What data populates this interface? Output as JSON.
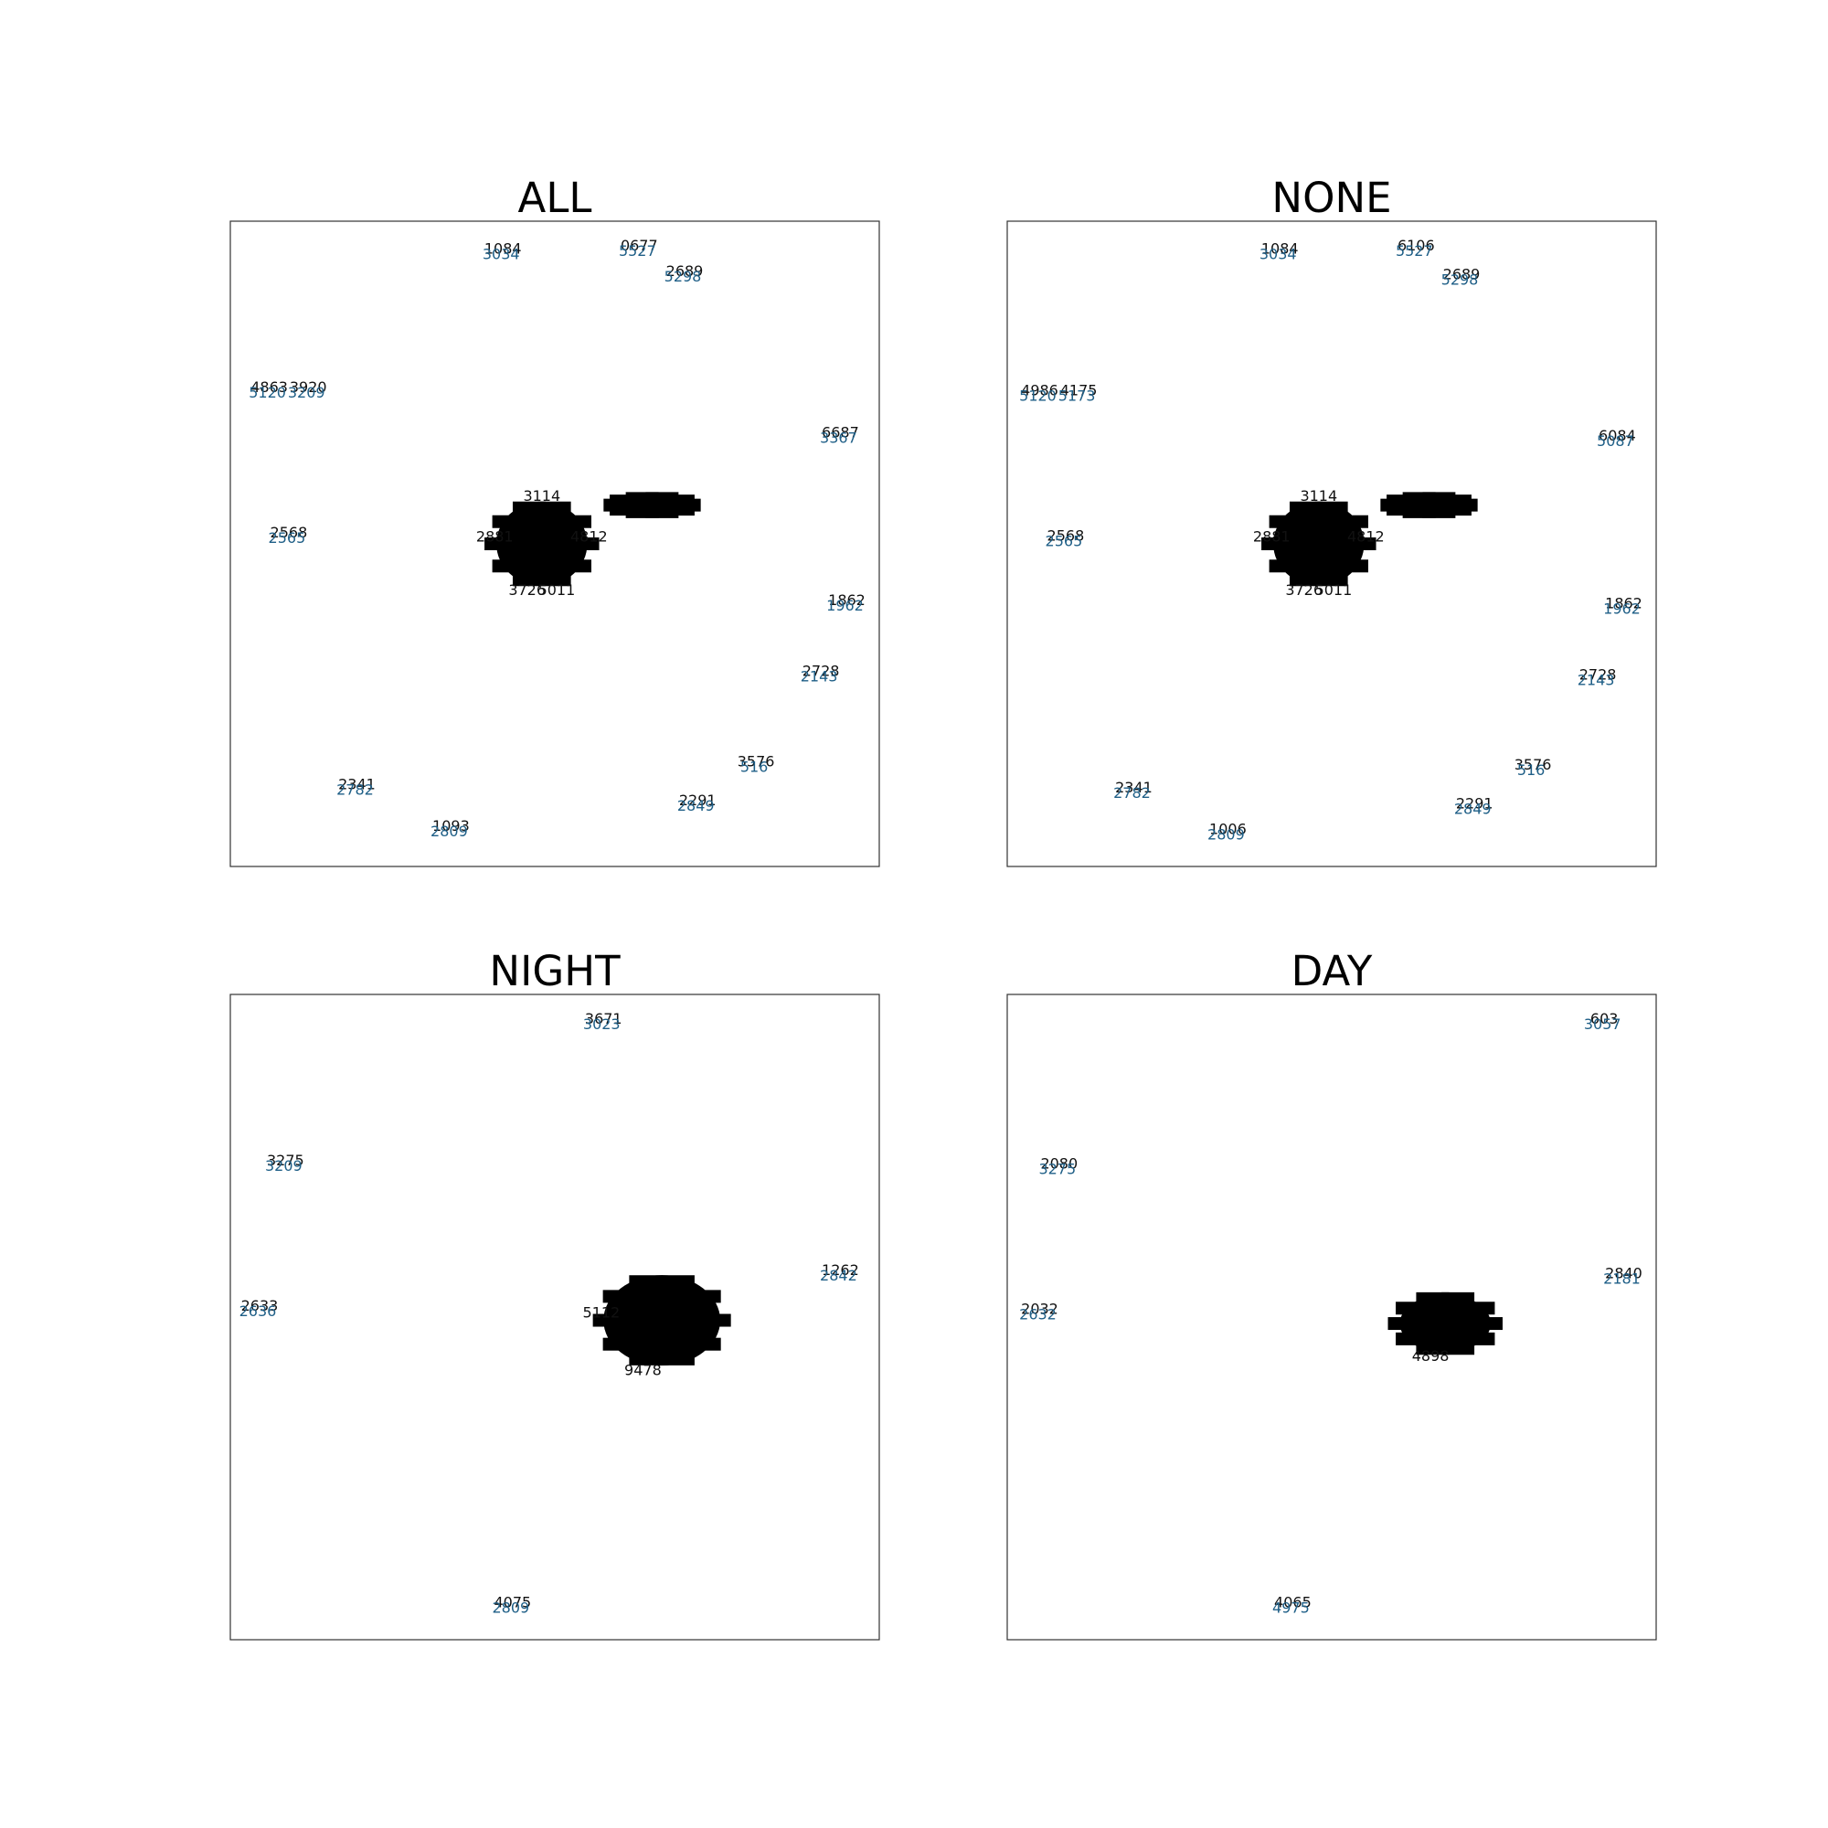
{
  "figure": {
    "background": "#ffffff",
    "accent_color": "#1f77b4",
    "label_color": "#000000"
  },
  "chart_data": [
    {
      "type": "scatter",
      "title": "ALL",
      "xlim": [
        0,
        1
      ],
      "ylim": [
        0,
        1
      ],
      "grid": false,
      "clusters": [
        {
          "x": 0.48,
          "y": 0.5,
          "rx": 0.07,
          "ry": 0.065,
          "labels": [
            "3726",
            "2881",
            "3114",
            "4812",
            "5011"
          ]
        },
        {
          "x": 0.65,
          "y": 0.56,
          "rx": 0.055,
          "ry": 0.012,
          "labels": []
        }
      ],
      "points": [
        {
          "x": 0.42,
          "y": 0.95,
          "labels": [
            "1084",
            "3034"
          ]
        },
        {
          "x": 0.63,
          "y": 0.955,
          "labels": [
            "0677",
            "5527"
          ]
        },
        {
          "x": 0.7,
          "y": 0.915,
          "labels": [
            "2689",
            "5298"
          ]
        },
        {
          "x": 0.06,
          "y": 0.735,
          "labels": [
            "4863",
            "5120"
          ]
        },
        {
          "x": 0.12,
          "y": 0.735,
          "labels": [
            "3920",
            "3209"
          ]
        },
        {
          "x": 0.94,
          "y": 0.665,
          "labels": [
            "6687",
            "3367"
          ]
        },
        {
          "x": 0.09,
          "y": 0.51,
          "labels": [
            "2568",
            "2565"
          ]
        },
        {
          "x": 0.95,
          "y": 0.405,
          "labels": [
            "1862",
            "1962"
          ]
        },
        {
          "x": 0.91,
          "y": 0.295,
          "labels": [
            "2728",
            "2143"
          ]
        },
        {
          "x": 0.81,
          "y": 0.155,
          "labels": [
            "3576",
            "516"
          ]
        },
        {
          "x": 0.72,
          "y": 0.095,
          "labels": [
            "2291",
            "2849"
          ]
        },
        {
          "x": 0.195,
          "y": 0.12,
          "labels": [
            "2341",
            "2782"
          ]
        },
        {
          "x": 0.34,
          "y": 0.055,
          "labels": [
            "1093",
            "2809"
          ]
        }
      ]
    },
    {
      "type": "scatter",
      "title": "NONE",
      "xlim": [
        0,
        1
      ],
      "ylim": [
        0,
        1
      ],
      "grid": false,
      "clusters": [
        {
          "x": 0.48,
          "y": 0.5,
          "rx": 0.07,
          "ry": 0.065,
          "labels": [
            "3726",
            "2881",
            "3114",
            "4812",
            "5011"
          ]
        },
        {
          "x": 0.65,
          "y": 0.56,
          "rx": 0.055,
          "ry": 0.012,
          "labels": []
        }
      ],
      "points": [
        {
          "x": 0.42,
          "y": 0.95,
          "labels": [
            "1084",
            "3034"
          ]
        },
        {
          "x": 0.63,
          "y": 0.955,
          "labels": [
            "6106",
            "5527"
          ]
        },
        {
          "x": 0.7,
          "y": 0.91,
          "labels": [
            "2689",
            "5298"
          ]
        },
        {
          "x": 0.05,
          "y": 0.73,
          "labels": [
            "4986",
            "5120"
          ]
        },
        {
          "x": 0.11,
          "y": 0.73,
          "labels": [
            "4175",
            "5173"
          ]
        },
        {
          "x": 0.94,
          "y": 0.66,
          "labels": [
            "6084",
            "5087"
          ]
        },
        {
          "x": 0.09,
          "y": 0.505,
          "labels": [
            "2568",
            "2565"
          ]
        },
        {
          "x": 0.95,
          "y": 0.4,
          "labels": [
            "1862",
            "1962"
          ]
        },
        {
          "x": 0.91,
          "y": 0.29,
          "labels": [
            "2728",
            "2143"
          ]
        },
        {
          "x": 0.81,
          "y": 0.15,
          "labels": [
            "3576",
            "516"
          ]
        },
        {
          "x": 0.72,
          "y": 0.09,
          "labels": [
            "2291",
            "2849"
          ]
        },
        {
          "x": 0.195,
          "y": 0.115,
          "labels": [
            "2341",
            "2782"
          ]
        },
        {
          "x": 0.34,
          "y": 0.05,
          "labels": [
            "1006",
            "2809"
          ]
        }
      ]
    },
    {
      "type": "scatter",
      "title": "NIGHT",
      "xlim": [
        0,
        1
      ],
      "ylim": [
        0,
        1
      ],
      "grid": false,
      "clusters": [
        {
          "x": 0.665,
          "y": 0.495,
          "rx": 0.09,
          "ry": 0.07,
          "labels": [
            "9478",
            "5112"
          ]
        }
      ],
      "points": [
        {
          "x": 0.575,
          "y": 0.955,
          "labels": [
            "3671",
            "3023"
          ]
        },
        {
          "x": 0.085,
          "y": 0.735,
          "labels": [
            "3275",
            "3209"
          ]
        },
        {
          "x": 0.94,
          "y": 0.565,
          "labels": [
            "1262",
            "2842"
          ]
        },
        {
          "x": 0.045,
          "y": 0.51,
          "labels": [
            "2633",
            "2636"
          ]
        },
        {
          "x": 0.435,
          "y": 0.05,
          "labels": [
            "4075",
            "2809"
          ]
        }
      ]
    },
    {
      "type": "scatter",
      "title": "DAY",
      "xlim": [
        0,
        1
      ],
      "ylim": [
        0,
        1
      ],
      "grid": false,
      "clusters": [
        {
          "x": 0.675,
          "y": 0.49,
          "rx": 0.07,
          "ry": 0.045,
          "labels": [
            "4898"
          ]
        }
      ],
      "points": [
        {
          "x": 0.92,
          "y": 0.955,
          "labels": [
            "603",
            "3057"
          ]
        },
        {
          "x": 0.08,
          "y": 0.73,
          "labels": [
            "2080",
            "3275"
          ]
        },
        {
          "x": 0.95,
          "y": 0.56,
          "labels": [
            "2840",
            "2181"
          ]
        },
        {
          "x": 0.05,
          "y": 0.505,
          "labels": [
            "2032",
            "2632"
          ]
        },
        {
          "x": 0.44,
          "y": 0.05,
          "labels": [
            "4065",
            "4975"
          ]
        }
      ]
    }
  ]
}
